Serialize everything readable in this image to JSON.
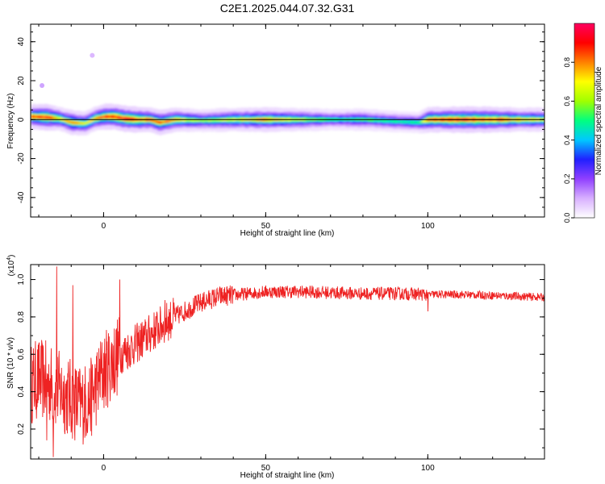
{
  "figure_title": "C2E1.2025.044.07.32.G31",
  "chart_data": [
    {
      "type": "heatmap",
      "xlabel": "Height of straight line (km)",
      "ylabel": "Frequency (Hz)",
      "xlim": [
        -22.5,
        136
      ],
      "ylim": [
        -50,
        49
      ],
      "x_ticks": [
        0,
        50,
        100
      ],
      "y_ticks": [
        -40,
        -20,
        0,
        20,
        40
      ],
      "colorbar": {
        "label": "Normalized spectral amplitude",
        "range": [
          0,
          1
        ],
        "ticks": [
          "0.0",
          "0.2",
          "0.4",
          "0.6",
          "0.8"
        ],
        "colors": [
          "#ffffff",
          "#d8b0ff",
          "#9040ff",
          "#2020ff",
          "#00c8ff",
          "#00ff80",
          "#a0ff00",
          "#ffff00",
          "#ff8000",
          "#ff0000",
          "#ff0060"
        ]
      },
      "reference_line_hz": 0,
      "ridge": [
        {
          "x": -22,
          "y": 1.5,
          "amp": 0.85
        },
        {
          "x": -18,
          "y": 1.2,
          "amp": 0.95
        },
        {
          "x": -14,
          "y": 0.5,
          "amp": 0.7
        },
        {
          "x": -10,
          "y": -1.5,
          "amp": 0.8
        },
        {
          "x": -6,
          "y": -2.0,
          "amp": 0.7
        },
        {
          "x": -3,
          "y": 0.5,
          "amp": 0.75
        },
        {
          "x": 0,
          "y": 1.5,
          "amp": 0.9
        },
        {
          "x": 3,
          "y": 1.5,
          "amp": 0.9
        },
        {
          "x": 6,
          "y": 0.5,
          "amp": 0.95
        },
        {
          "x": 10,
          "y": 0.0,
          "amp": 0.9
        },
        {
          "x": 14,
          "y": 0.0,
          "amp": 0.8
        },
        {
          "x": 17,
          "y": -1.5,
          "amp": 0.85
        },
        {
          "x": 22,
          "y": 0.0,
          "amp": 0.75
        },
        {
          "x": 30,
          "y": -0.5,
          "amp": 0.6
        },
        {
          "x": 40,
          "y": 0.0,
          "amp": 0.7
        },
        {
          "x": 50,
          "y": 0.0,
          "amp": 0.8
        },
        {
          "x": 60,
          "y": 0.0,
          "amp": 0.65
        },
        {
          "x": 70,
          "y": 0.0,
          "amp": 0.5
        },
        {
          "x": 80,
          "y": 0.0,
          "amp": 0.55
        },
        {
          "x": 90,
          "y": -1.0,
          "amp": 0.5
        },
        {
          "x": 97,
          "y": -1.5,
          "amp": 0.5
        },
        {
          "x": 100,
          "y": 0.0,
          "amp": 0.85
        },
        {
          "x": 110,
          "y": 0.0,
          "amp": 0.95
        },
        {
          "x": 120,
          "y": 0.0,
          "amp": 0.9
        },
        {
          "x": 128,
          "y": 0.0,
          "amp": 0.75
        },
        {
          "x": 136,
          "y": 0.0,
          "amp": 0.7
        }
      ],
      "spots": [
        {
          "x": -19,
          "y": 17.5,
          "amp": 0.12
        },
        {
          "x": -3.5,
          "y": 33,
          "amp": 0.1
        }
      ]
    },
    {
      "type": "line",
      "xlabel": "Height of straight line (km)",
      "ylabel": "SNR (10 * v/v)",
      "y_multiplier": "(x10^4)",
      "xlim": [
        -22.5,
        136
      ],
      "ylim": [
        0.04,
        1.08
      ],
      "x_ticks": [
        0,
        50,
        100
      ],
      "y_ticks": [
        0.2,
        0.4,
        0.6,
        0.8,
        1.0
      ],
      "series": [
        {
          "color": "#ee2222",
          "envelope_x": [
            -22.5,
            -20,
            -17,
            -15,
            -13,
            -10,
            -7,
            -4,
            -1,
            2,
            5,
            8,
            12,
            16,
            20,
            24,
            28,
            32,
            36,
            42,
            50,
            60,
            70,
            80,
            90,
            100,
            110,
            120,
            136
          ],
          "envelope_y": [
            0.44,
            0.47,
            0.45,
            0.42,
            0.4,
            0.36,
            0.33,
            0.36,
            0.48,
            0.55,
            0.6,
            0.63,
            0.68,
            0.73,
            0.78,
            0.82,
            0.86,
            0.89,
            0.91,
            0.92,
            0.935,
            0.935,
            0.93,
            0.925,
            0.925,
            0.92,
            0.92,
            0.915,
            0.905
          ],
          "spikes": [
            {
              "x": -14.5,
              "y": 1.07
            },
            {
              "x": -15.5,
              "y": 0.05
            },
            {
              "x": -17.5,
              "y": 0.14
            },
            {
              "x": -9.5,
              "y": 0.97
            },
            {
              "x": -6.5,
              "y": 0.38
            },
            {
              "x": -8,
              "y": 0.22
            },
            {
              "x": 5,
              "y": 1.0
            },
            {
              "x": 19,
              "y": 0.89
            },
            {
              "x": 100,
              "y": 0.83
            }
          ]
        }
      ]
    }
  ]
}
